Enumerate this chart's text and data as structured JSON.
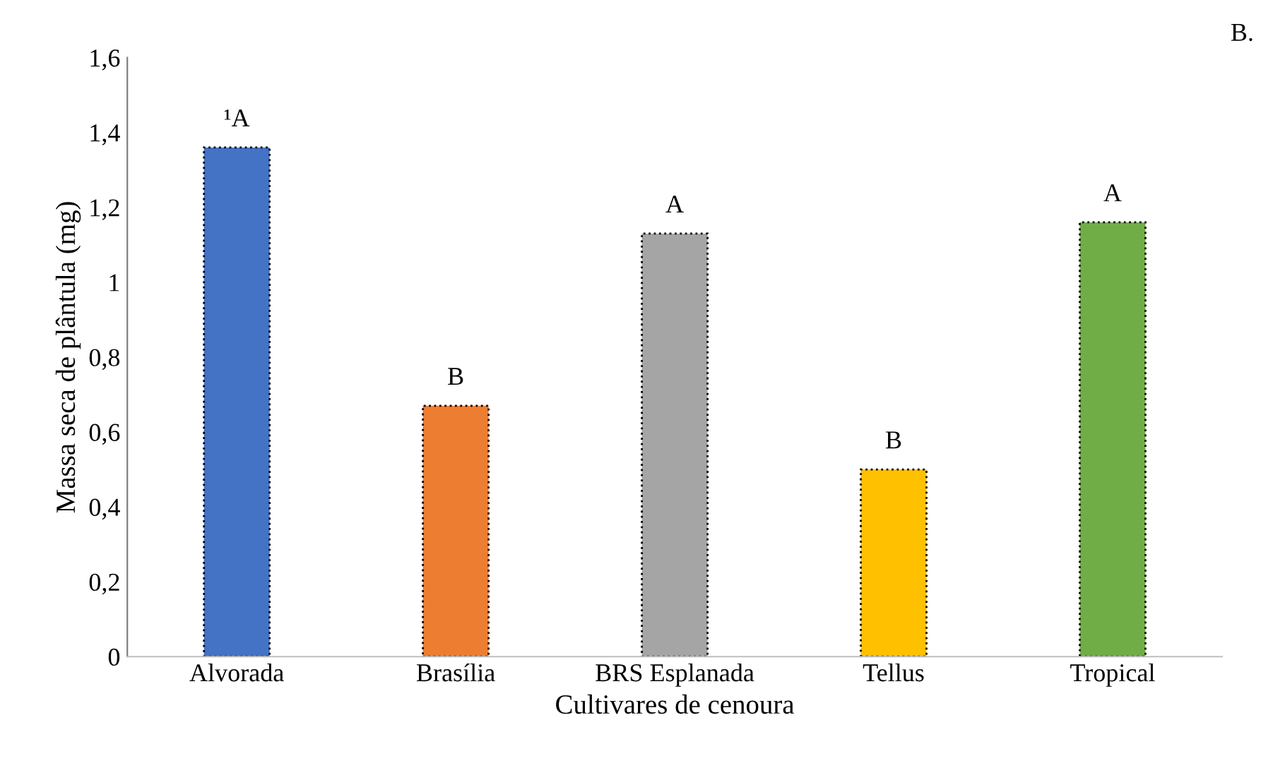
{
  "chart_data": {
    "type": "bar",
    "xlabel": "Cultivares de cenoura",
    "ylabel": "Massa seca de plântula (mg)",
    "categories": [
      "Alvorada",
      "Brasília",
      "BRS Esplanada",
      "Tellus",
      "Tropical"
    ],
    "values": [
      1.36,
      0.67,
      1.13,
      0.5,
      1.16
    ],
    "colors": [
      "#4472c4",
      "#ed7d31",
      "#a5a5a5",
      "#ffc000",
      "#70ad47"
    ],
    "ylim": [
      0,
      1.6
    ],
    "yticks": [
      0,
      {
        "value": 0.2,
        "label": "0,2"
      },
      {
        "value": 0.4,
        "label": "0,4"
      },
      {
        "value": 0.6,
        "label": "0,6"
      },
      {
        "value": 0.8,
        "label": "0,8"
      },
      1,
      {
        "value": 1.2,
        "label": "1,2"
      },
      {
        "value": 1.4,
        "label": "1,4"
      },
      {
        "value": 1.6,
        "label": "1,6"
      }
    ],
    "grid": false,
    "annotations": [
      {
        "text": "¹A",
        "x": "Alvorada",
        "y": 1.36
      },
      {
        "text": "B",
        "x": "Brasília",
        "y": 0.67
      },
      {
        "text": "A",
        "x": "BRS Esplanada",
        "y": 1.13
      },
      {
        "text": "B",
        "x": "Tellus",
        "y": 0.5
      },
      {
        "text": "A",
        "x": "Tropical",
        "y": 1.16
      },
      "B."
    ]
  }
}
